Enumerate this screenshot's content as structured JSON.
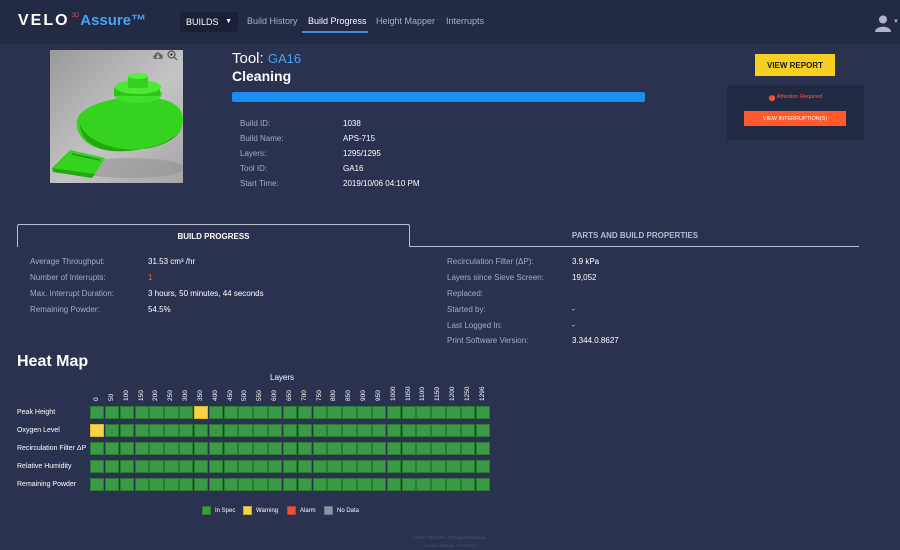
{
  "nav": {
    "logo_main": "VELO",
    "logo_sup": "3D",
    "logo_assure": "Assure™",
    "builds_label": "BUILDS",
    "links": [
      "Build History",
      "Build Progress",
      "Height Mapper",
      "Interrupts"
    ]
  },
  "tool": {
    "title_label": "Tool:",
    "title_id": "GA16",
    "status": "Cleaning",
    "progress_fraction": 1.0,
    "info": [
      {
        "label": "Build ID:",
        "value": "1038"
      },
      {
        "label": "Build Name:",
        "value": "APS-715"
      },
      {
        "label": "Layers:",
        "value": "1295/1295"
      },
      {
        "label": "Tool ID:",
        "value": "GA16"
      },
      {
        "label": "Start Time:",
        "value": "2019/10/06 04:10 PM"
      }
    ]
  },
  "actions": {
    "view_report": "VIEW REPORT",
    "attention": "Attention Required",
    "view_interruptions": "VIEW INTERRUPTION(S)"
  },
  "tabs": {
    "build_progress": "BUILD PROGRESS",
    "parts_props": "PARTS AND BUILD PROPERTIES"
  },
  "progress_left": [
    {
      "label": "Average Throughput:",
      "value": "31.53 cm³ /hr"
    },
    {
      "label": "Number of Interrupts:",
      "value": "1"
    },
    {
      "label": "Max. Interrupt Duration:",
      "value": "3 hours, 50 minutes, 44 seconds"
    },
    {
      "label": "Remaining Powder:",
      "value": "54.5%"
    }
  ],
  "progress_right": [
    {
      "label": "Recirculation Filter (ΔP):",
      "value": "3.9 kPa"
    },
    {
      "label": "Layers since Sieve Screen:",
      "value": "19,052"
    },
    {
      "label": "Replaced:",
      "value": ""
    },
    {
      "label": "Started by:",
      "value": "-"
    },
    {
      "label": "Last Logged In:",
      "value": "-"
    },
    {
      "label": "Print Software Version:",
      "value": "3.344.0.8627"
    }
  ],
  "heatmap": {
    "title": "Heat Map",
    "axis_label": "Layers",
    "ticks": [
      "0",
      "50",
      "100",
      "150",
      "200",
      "250",
      "300",
      "350",
      "400",
      "450",
      "500",
      "550",
      "600",
      "650",
      "700",
      "750",
      "800",
      "850",
      "900",
      "950",
      "1000",
      "1050",
      "1100",
      "1150",
      "1200",
      "1250",
      "1296"
    ],
    "rows": [
      {
        "name": "Peak Height",
        "warn_index": 7
      },
      {
        "name": "Oxygen Level",
        "warn_index": 0
      },
      {
        "name": "Recirculation Filter ΔP",
        "warn_index": -1
      },
      {
        "name": "Relative Humidity",
        "warn_index": -1
      },
      {
        "name": "Remaining Powder",
        "warn_index": -1
      }
    ],
    "legend": [
      {
        "label": "In Spec",
        "color": "#3b9a45"
      },
      {
        "label": "Warning",
        "color": "#f5d449"
      },
      {
        "label": "Alarm",
        "color": "#e8533a"
      },
      {
        "label": "No Data",
        "color": "#8a93a8"
      }
    ]
  },
  "footer": {
    "copyright": "©2019 VELO3D. All Rights Reserved.",
    "version": "Assure Version 4.0.0 beta"
  }
}
